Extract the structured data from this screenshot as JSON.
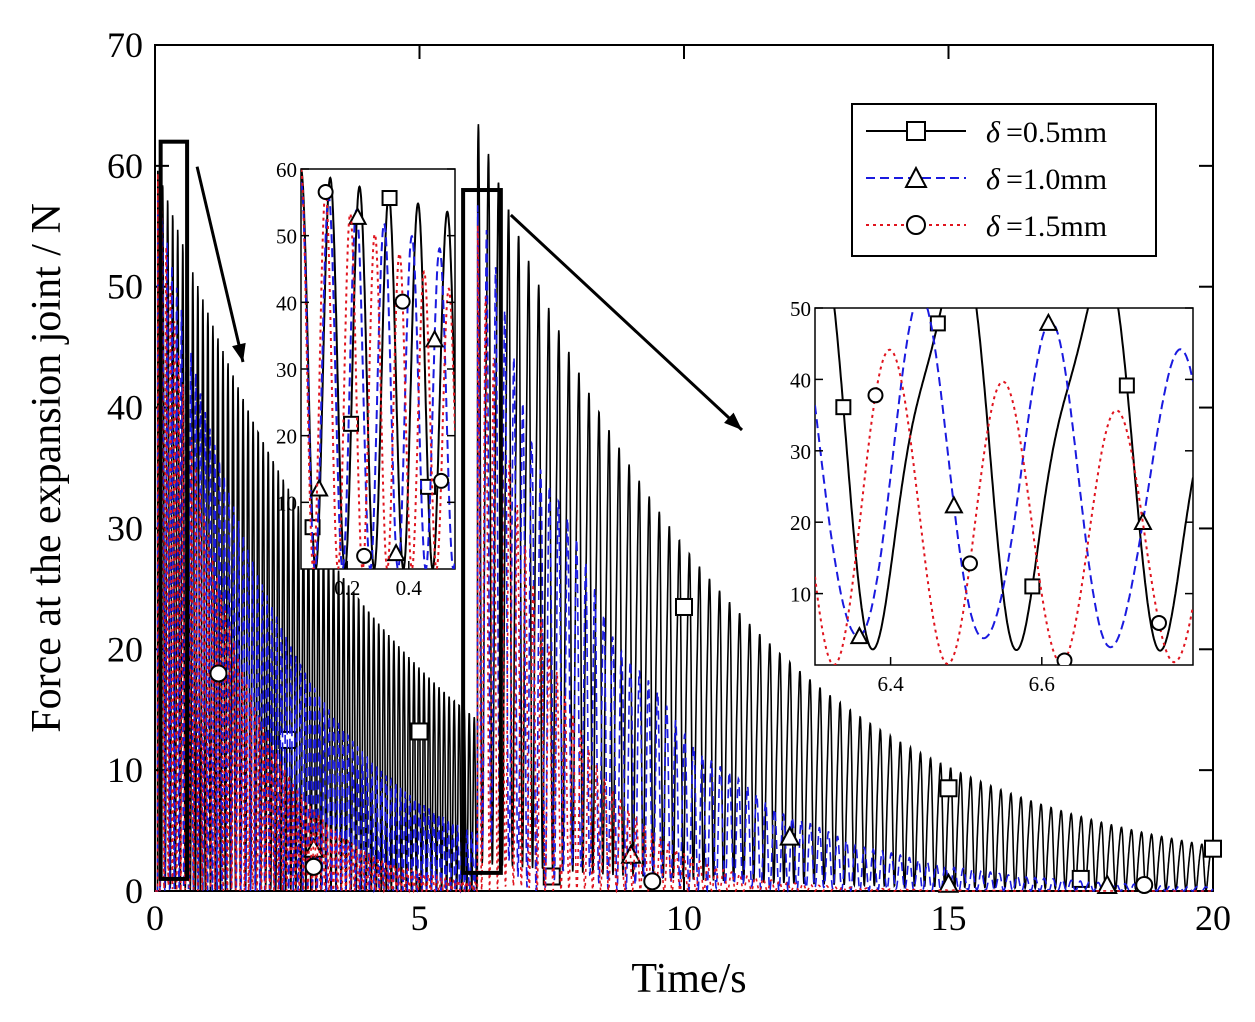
{
  "chart_data": {
    "type": "line",
    "title": "",
    "xlabel": "Time/s",
    "ylabel": "Force at the expansion joint / N",
    "xlim": [
      0,
      20
    ],
    "ylim": [
      0,
      70
    ],
    "xticks": [
      "0",
      "5",
      "10",
      "15",
      "20"
    ],
    "yticks": [
      "0",
      "10",
      "20",
      "30",
      "40",
      "50",
      "60",
      "70"
    ],
    "legend_position": "top-right",
    "series": [
      {
        "name": "δ=0.5mm",
        "legend_symbol": "δ",
        "legend_value": "=0.5mm",
        "color": "#000000",
        "style": "solid",
        "marker": "square",
        "impacts": [
          {
            "t0": 0.05,
            "peak": 60,
            "tau": 4.2,
            "period": 0.095
          },
          {
            "t0": 6.1,
            "peak": 56,
            "tau": 5.0,
            "period": 0.19
          }
        ],
        "markers": [
          [
            2.5,
            12.5
          ],
          [
            5.0,
            13.2
          ],
          [
            7.5,
            1.2
          ],
          [
            10.0,
            23.5
          ],
          [
            15.0,
            8.5
          ],
          [
            17.5,
            1.0
          ],
          [
            20.0,
            3.5
          ]
        ]
      },
      {
        "name": "δ=1.0mm",
        "legend_symbol": "δ",
        "legend_value": "=1.0mm",
        "color": "#1a1adf",
        "style": "dashed",
        "marker": "triangle",
        "impacts": [
          {
            "t0": 0.05,
            "peak": 58,
            "tau": 2.4,
            "period": 0.09
          },
          {
            "t0": 6.1,
            "peak": 54,
            "tau": 2.7,
            "period": 0.17
          }
        ],
        "markers": [
          [
            3.0,
            3.5
          ],
          [
            9.0,
            3.0
          ],
          [
            12.0,
            4.5
          ],
          [
            15.0,
            0.6
          ],
          [
            18.0,
            0.5
          ]
        ]
      },
      {
        "name": "δ=1.5mm",
        "legend_symbol": "δ",
        "legend_value": "=1.5mm",
        "color": "#e0141e",
        "style": "dotted",
        "marker": "circle",
        "impacts": [
          {
            "t0": 0.05,
            "peak": 60,
            "tau": 1.35,
            "period": 0.08
          },
          {
            "t0": 6.1,
            "peak": 55,
            "tau": 1.35,
            "period": 0.15
          }
        ],
        "markers": [
          [
            1.2,
            18.0
          ],
          [
            3.0,
            2.0
          ],
          [
            9.4,
            0.8
          ],
          [
            18.7,
            0.5
          ]
        ]
      }
    ],
    "insets": [
      {
        "xlim": [
          0.05,
          0.55
        ],
        "ylim": [
          0,
          60
        ],
        "xticks": [
          "0.2",
          "0.4"
        ],
        "yticks": [
          "10",
          "20",
          "30",
          "40",
          "50",
          "60"
        ],
        "zoom_box": {
          "xlim": [
            0.05,
            0.55
          ],
          "ylim": [
            1,
            62
          ]
        }
      },
      {
        "xlim": [
          6.3,
          6.8
        ],
        "ylim": [
          0,
          50
        ],
        "xticks": [
          "6.4",
          "6.6"
        ],
        "yticks": [
          "10",
          "20",
          "30",
          "40",
          "50"
        ],
        "zoom_box": {
          "xlim": [
            5.9,
            6.5
          ],
          "ylim": [
            1.5,
            58
          ]
        }
      }
    ]
  }
}
